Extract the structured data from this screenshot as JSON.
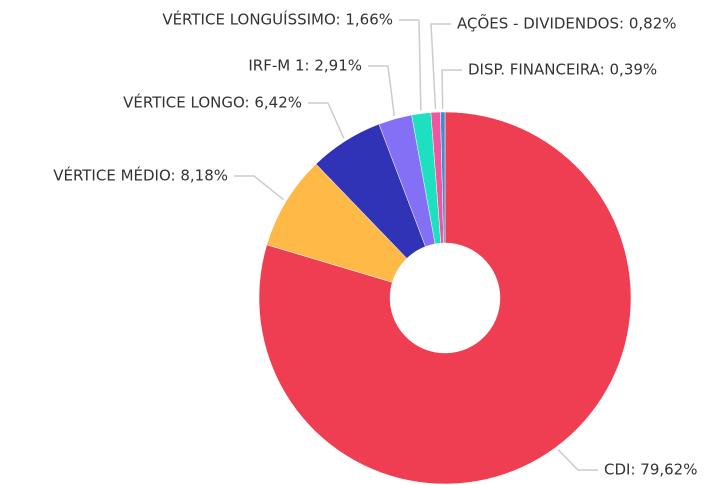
{
  "chart_data": {
    "type": "donut",
    "value_labels": [
      "CDI: 79,62%",
      "VÉRTICE MÉDIO: 8,18%",
      "VÉRTICE LONGO: 6,42%",
      "IRF-M 1: 2,91%",
      "VÉRTICE LONGUÍSSIMO: 1,66%",
      "AÇÕES - DIVIDENDOS: 0,82%",
      "DISP. FINANCEIRA: 0,39%"
    ],
    "values": [
      79.62,
      8.18,
      6.42,
      2.91,
      1.66,
      0.82,
      0.39
    ],
    "colors": [
      "#ef3e52",
      "#ffb946",
      "#3033b5",
      "#8470f5",
      "#1de0c0",
      "#f0559e",
      "#3a8fd9"
    ]
  }
}
